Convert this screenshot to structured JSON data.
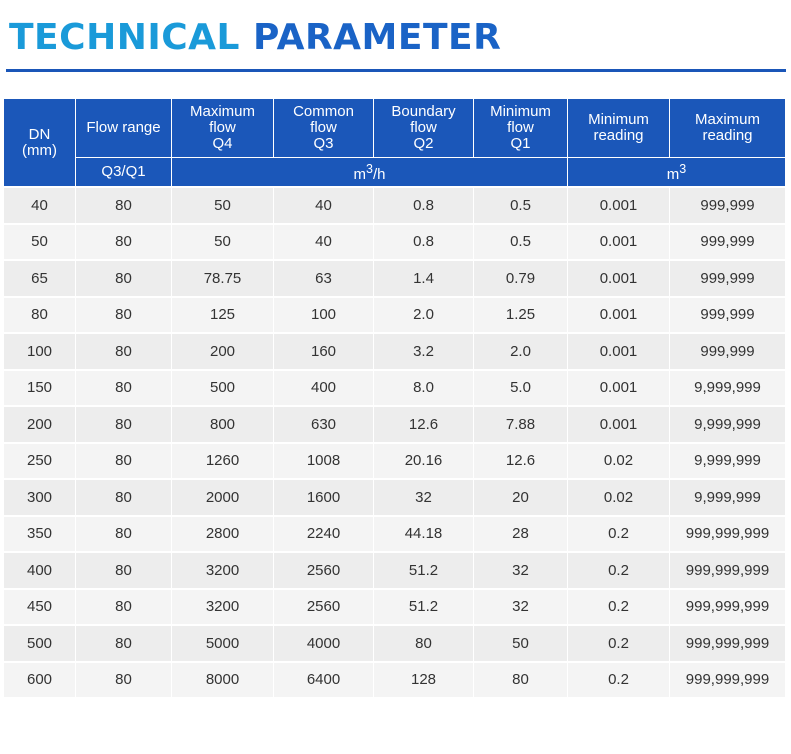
{
  "title": {
    "part1": "TECHNICAL",
    "part2": "PARAMETER"
  },
  "header": {
    "dn": {
      "line1": "DN",
      "line2": "(mm)"
    },
    "flow_range": "Flow range",
    "max_flow": {
      "line1": "Maximum",
      "line2": "flow",
      "line3": "Q4"
    },
    "common_flow": {
      "line1": "Common",
      "line2": "flow",
      "line3": "Q3"
    },
    "boundary_flow": {
      "line1": "Boundary",
      "line2": "flow",
      "line3": "Q2"
    },
    "min_flow": {
      "line1": "Minimum",
      "line2": "flow",
      "line3": "Q1"
    },
    "min_reading": {
      "line1": "Minimum",
      "line2": "reading"
    },
    "max_reading": {
      "line1": "Maximum",
      "line2": "reading"
    },
    "ratio": "Q3/Q1",
    "flow_unit": {
      "base": "m",
      "sup": "3",
      "suffix": "/h"
    },
    "volume_unit": {
      "base": "m",
      "sup": "3"
    }
  },
  "rows": [
    [
      "40",
      "80",
      "50",
      "40",
      "0.8",
      "0.5",
      "0.001",
      "999,999"
    ],
    [
      "50",
      "80",
      "50",
      "40",
      "0.8",
      "0.5",
      "0.001",
      "999,999"
    ],
    [
      "65",
      "80",
      "78.75",
      "63",
      "1.4",
      "0.79",
      "0.001",
      "999,999"
    ],
    [
      "80",
      "80",
      "125",
      "100",
      "2.0",
      "1.25",
      "0.001",
      "999,999"
    ],
    [
      "100",
      "80",
      "200",
      "160",
      "3.2",
      "2.0",
      "0.001",
      "999,999"
    ],
    [
      "150",
      "80",
      "500",
      "400",
      "8.0",
      "5.0",
      "0.001",
      "9,999,999"
    ],
    [
      "200",
      "80",
      "800",
      "630",
      "12.6",
      "7.88",
      "0.001",
      "9,999,999"
    ],
    [
      "250",
      "80",
      "1260",
      "1008",
      "20.16",
      "12.6",
      "0.02",
      "9,999,999"
    ],
    [
      "300",
      "80",
      "2000",
      "1600",
      "32",
      "20",
      "0.02",
      "9,999,999"
    ],
    [
      "350",
      "80",
      "2800",
      "2240",
      "44.18",
      "28",
      "0.2",
      "999,999,999"
    ],
    [
      "400",
      "80",
      "3200",
      "2560",
      "51.2",
      "32",
      "0.2",
      "999,999,999"
    ],
    [
      "450",
      "80",
      "3200",
      "2560",
      "51.2",
      "32",
      "0.2",
      "999,999,999"
    ],
    [
      "500",
      "80",
      "5000",
      "4000",
      "80",
      "50",
      "0.2",
      "999,999,999"
    ],
    [
      "600",
      "80",
      "8000",
      "6400",
      "128",
      "80",
      "0.2",
      "999,999,999"
    ]
  ]
}
